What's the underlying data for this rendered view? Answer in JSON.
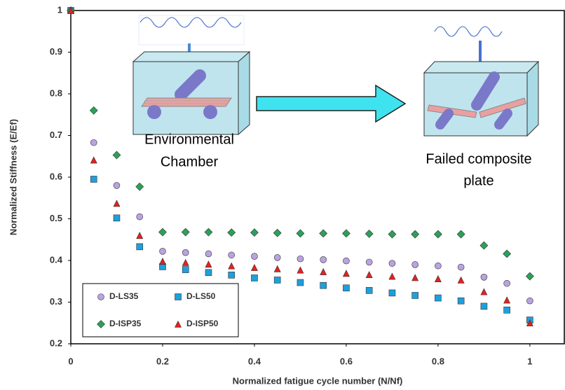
{
  "chart_data": {
    "type": "scatter",
    "x_label": "Normalized  fatigue cycle number (N/Nf)",
    "y_label": "Normalized Stiffness (E/Ef)",
    "x": [
      0,
      0.05,
      0.1,
      0.15,
      0.2,
      0.25,
      0.3,
      0.35,
      0.4,
      0.45,
      0.5,
      0.55,
      0.6,
      0.65,
      0.7,
      0.75,
      0.8,
      0.85,
      0.9,
      0.95,
      1.0
    ],
    "series": [
      {
        "name": "D-LS35",
        "color": "#b9a3e0",
        "marker": "circle",
        "values": [
          1,
          0.683,
          0.58,
          0.505,
          0.422,
          0.419,
          0.416,
          0.413,
          0.41,
          0.407,
          0.404,
          0.402,
          0.399,
          0.396,
          0.393,
          0.39,
          0.387,
          0.384,
          0.36,
          0.345,
          0.303
        ]
      },
      {
        "name": "D-LS50",
        "color": "#1f9fdc",
        "marker": "square",
        "values": [
          1,
          0.595,
          0.502,
          0.433,
          0.385,
          0.378,
          0.371,
          0.365,
          0.358,
          0.353,
          0.347,
          0.34,
          0.334,
          0.328,
          0.322,
          0.316,
          0.31,
          0.303,
          0.29,
          0.281,
          0.257
        ]
      },
      {
        "name": "D-ISP35",
        "color": "#2ca05a",
        "marker": "diamond",
        "values": [
          1,
          0.76,
          0.653,
          0.577,
          0.468,
          0.468,
          0.468,
          0.467,
          0.467,
          0.466,
          0.465,
          0.465,
          0.465,
          0.464,
          0.463,
          0.463,
          0.463,
          0.463,
          0.436,
          0.416,
          0.362
        ]
      },
      {
        "name": "D-ISP50",
        "color": "#e52020",
        "marker": "triangle",
        "values": [
          1,
          0.641,
          0.537,
          0.46,
          0.398,
          0.395,
          0.391,
          0.387,
          0.383,
          0.38,
          0.377,
          0.373,
          0.369,
          0.366,
          0.362,
          0.359,
          0.356,
          0.353,
          0.325,
          0.305,
          0.25
        ]
      }
    ],
    "xlim": [
      0,
      1.075
    ],
    "ylim": [
      0.2,
      1
    ],
    "xticks": [
      0,
      0.2,
      0.4,
      0.6,
      0.8,
      1
    ],
    "yticks": [
      0.2,
      0.3,
      0.4,
      0.5,
      0.6,
      0.7,
      0.8,
      0.9,
      1
    ],
    "legend": "lower left",
    "annotations": [
      {
        "lines": [
          "Environmental",
          "Chamber"
        ]
      },
      {
        "lines": [
          "Failed composite",
          "plate"
        ]
      }
    ]
  }
}
